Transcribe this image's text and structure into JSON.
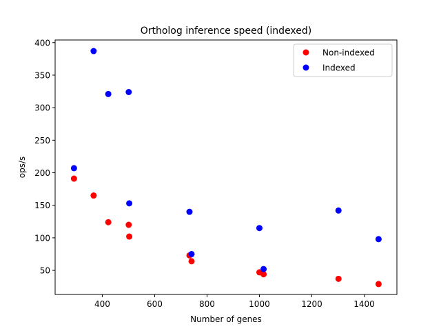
{
  "chart_data": {
    "type": "scatter",
    "title": "Ortholog inference speed (indexed)",
    "xlabel": "Number of genes",
    "ylabel": "ops/s",
    "xlim": [
      220,
      1525
    ],
    "ylim": [
      13,
      404
    ],
    "xticks": [
      400,
      600,
      800,
      1000,
      1200,
      1400
    ],
    "yticks": [
      50,
      100,
      150,
      200,
      250,
      300,
      350,
      400
    ],
    "grid": false,
    "legend_position": "top-right",
    "series": [
      {
        "name": "Non-indexed",
        "color": "#ff0000",
        "points": [
          {
            "x": 292,
            "y": 191
          },
          {
            "x": 367,
            "y": 165
          },
          {
            "x": 423,
            "y": 124
          },
          {
            "x": 501,
            "y": 120
          },
          {
            "x": 503,
            "y": 102
          },
          {
            "x": 733,
            "y": 73
          },
          {
            "x": 741,
            "y": 64
          },
          {
            "x": 1000,
            "y": 47
          },
          {
            "x": 1016,
            "y": 44
          },
          {
            "x": 1302,
            "y": 37
          },
          {
            "x": 1455,
            "y": 29
          }
        ]
      },
      {
        "name": "Indexed",
        "color": "#0000ff",
        "points": [
          {
            "x": 292,
            "y": 207
          },
          {
            "x": 367,
            "y": 387
          },
          {
            "x": 423,
            "y": 321
          },
          {
            "x": 501,
            "y": 324
          },
          {
            "x": 503,
            "y": 153
          },
          {
            "x": 733,
            "y": 140
          },
          {
            "x": 741,
            "y": 75
          },
          {
            "x": 1000,
            "y": 115
          },
          {
            "x": 1016,
            "y": 52
          },
          {
            "x": 1302,
            "y": 142
          },
          {
            "x": 1455,
            "y": 98
          }
        ]
      }
    ]
  }
}
